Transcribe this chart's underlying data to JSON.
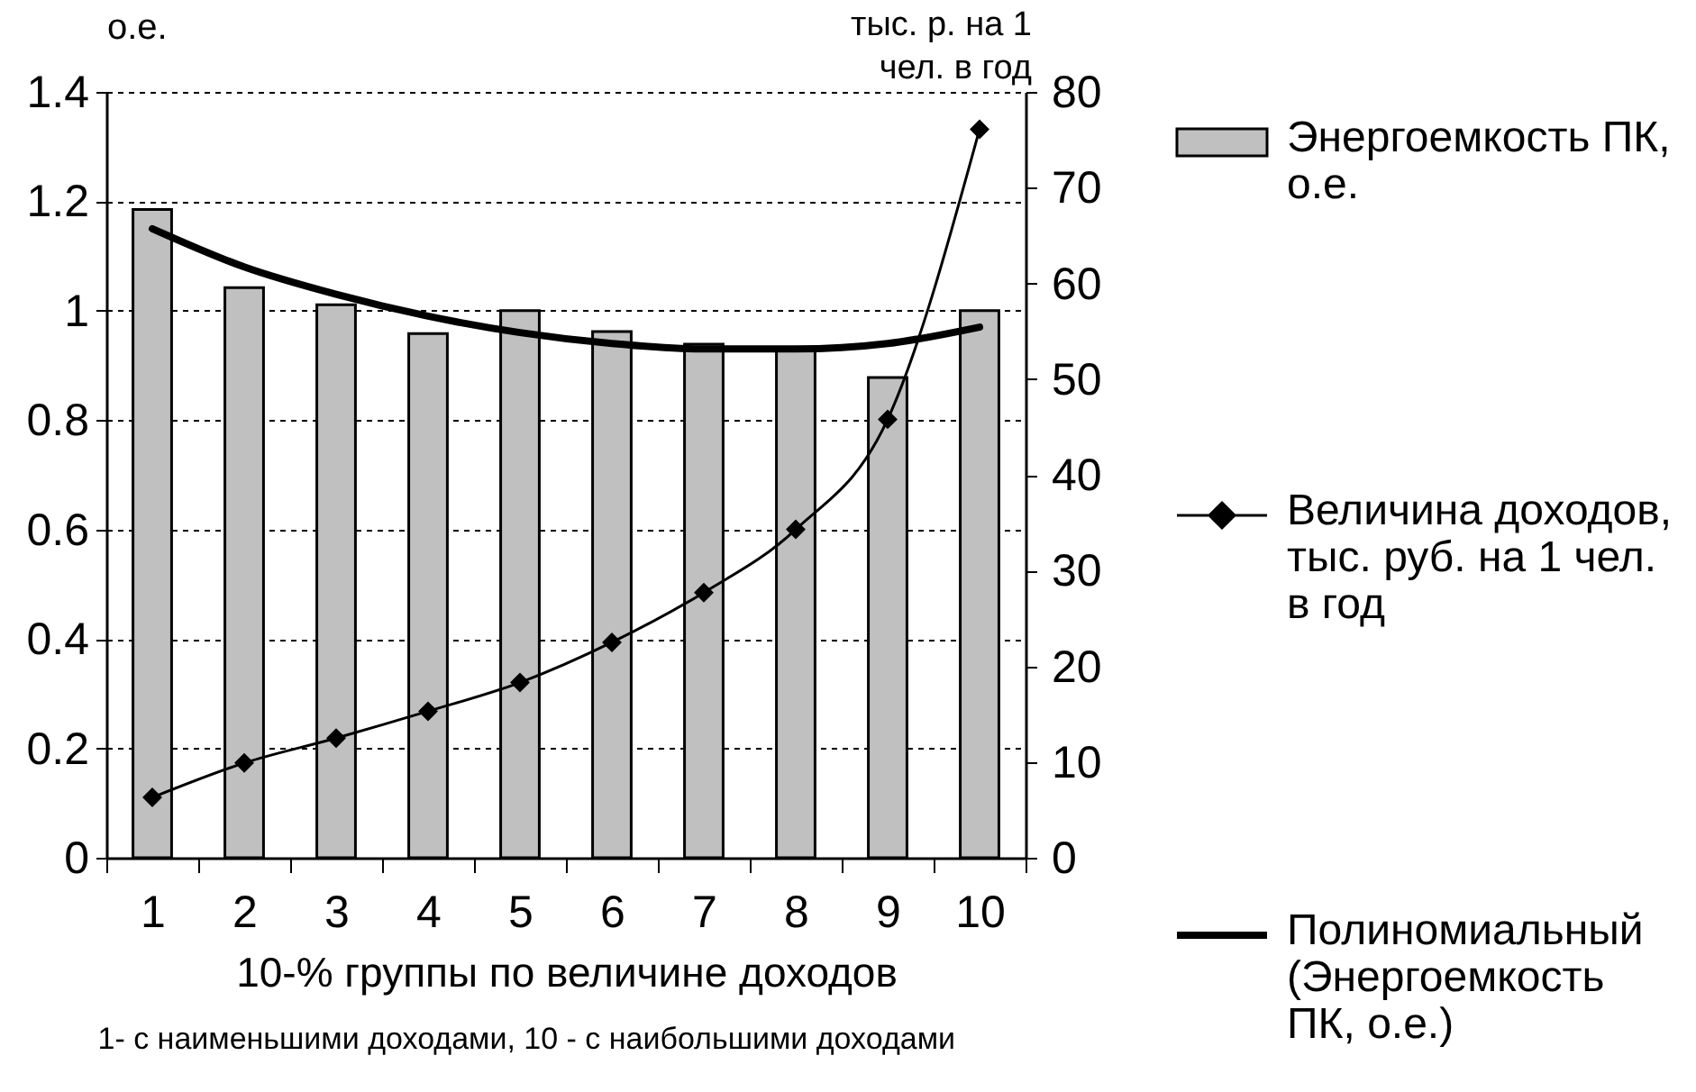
{
  "chart_data": {
    "type": "bar",
    "categories": [
      "1",
      "2",
      "3",
      "4",
      "5",
      "6",
      "7",
      "8",
      "9",
      "10"
    ],
    "xlabel": "10-% группы по величине доходов",
    "ylabel": "о.е.",
    "y2label": "тыс. р. на 1 чел. в год",
    "ylim": [
      0,
      1.4
    ],
    "yticks": [
      0,
      0.2,
      0.4,
      0.6,
      0.8,
      1,
      1.2,
      1.4
    ],
    "y2lim": [
      0,
      80
    ],
    "y2ticks": [
      0,
      10,
      20,
      30,
      40,
      50,
      60,
      70,
      80
    ],
    "grid": "y",
    "legend": "right",
    "series": [
      {
        "name": "Энергоемкость ПК, о.е.",
        "color": "#c0c0c0",
        "values": [
          1.185,
          1.042,
          1.011,
          0.958,
          1.0,
          0.962,
          0.939,
          0.93,
          0.878,
          1.0
        ]
      },
      {
        "name": "Величина доходов, тыс. руб. на 1 чел. в год",
        "type": "line",
        "axis": "y2",
        "marker": "diamond",
        "color": "#000000",
        "values": [
          6.3,
          9.9,
          12.5,
          15.3,
          18.3,
          22.5,
          27.7,
          34.3,
          45.8,
          76.1
        ]
      },
      {
        "name": "Полиномиальный (Энергоемкость ПК, о.е.)",
        "type": "line",
        "marker": "none",
        "color": "#000000",
        "values": [
          1.15,
          1.08,
          1.03,
          0.99,
          0.96,
          0.94,
          0.93,
          0.93,
          0.94,
          0.97
        ]
      }
    ],
    "annotations": [
      "1- с наименьшими доходами, 10 - с наибольшими доходами"
    ]
  }
}
